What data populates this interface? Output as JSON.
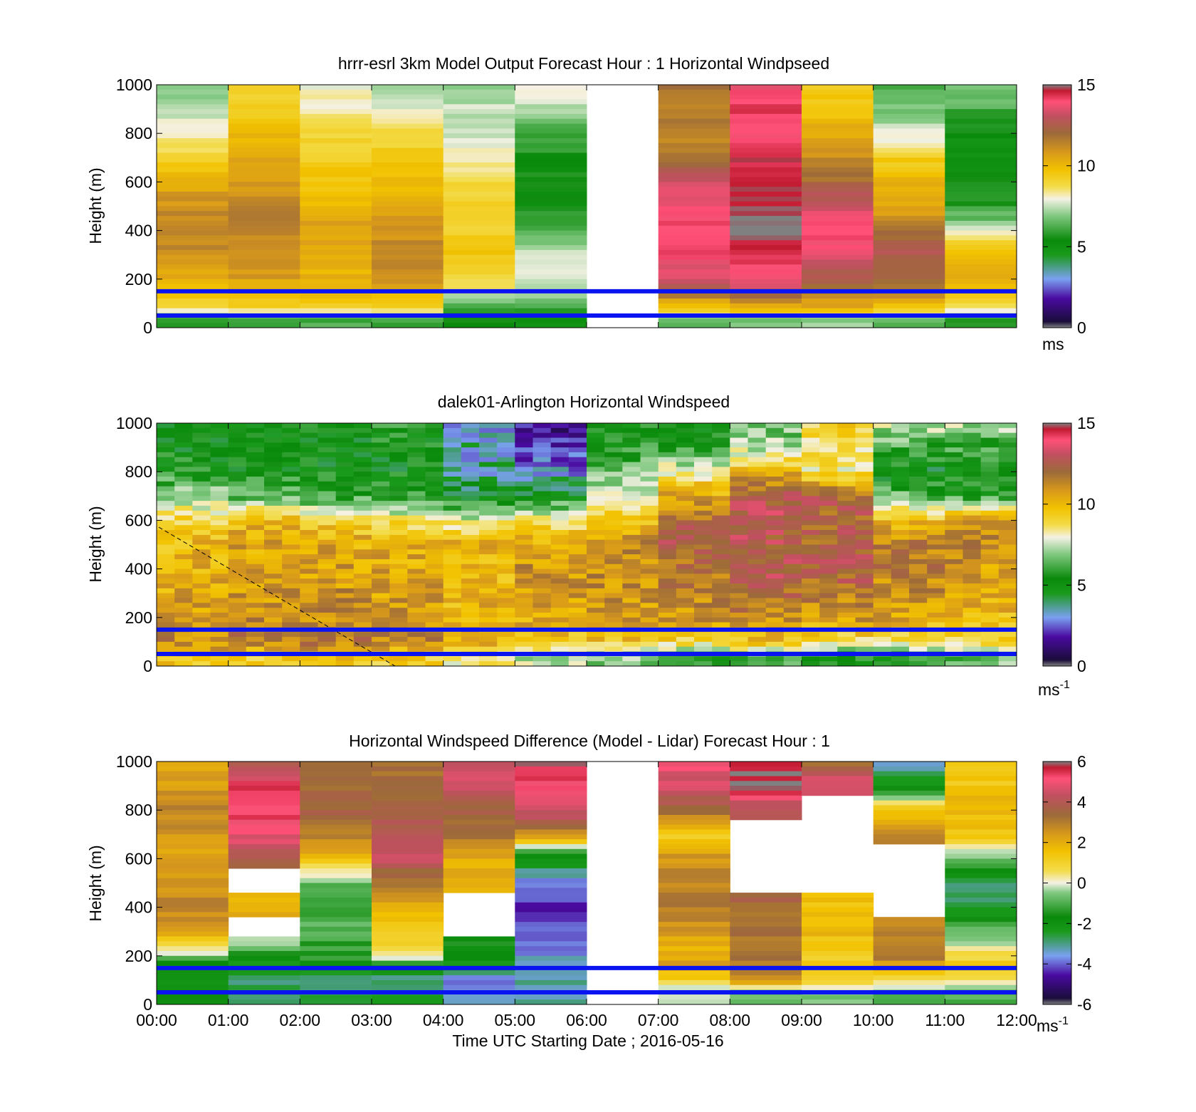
{
  "figure": {
    "x_ticks": [
      "00:00",
      "01:00",
      "02:00",
      "03:00",
      "04:00",
      "05:00",
      "06:00",
      "07:00",
      "08:00",
      "09:00",
      "10:00",
      "11:00",
      "12:00"
    ],
    "xlabel": "Time UTC  Starting Date ; 2016-05-16",
    "blue_line_heights": [
      150,
      50
    ],
    "blue_line_color": "#0a14f0"
  },
  "chart_data": [
    {
      "type": "heatmap",
      "title": "hrrr-esrl 3km Model Output   Forecast Hour : 1 Horizontal Windpseed",
      "ylabel": "Height (m)",
      "ylim": [
        0,
        1000
      ],
      "yticks": [
        0,
        200,
        400,
        600,
        800,
        1000
      ],
      "colorbar": {
        "min": 0,
        "max": 15,
        "ticks": [
          "0",
          "5",
          "10",
          "15"
        ],
        "unit": "ms",
        "unit_sup": ""
      },
      "colormap": "windspeed",
      "x_hours": [
        0,
        12
      ],
      "heights_m": [
        1000,
        900,
        800,
        700,
        600,
        500,
        450,
        400,
        350,
        300,
        250,
        200,
        150,
        100,
        60,
        30
      ],
      "columns_hours": [
        0,
        1,
        2,
        3,
        4,
        5,
        6,
        7,
        8,
        9,
        10,
        11
      ],
      "values_ms": [
        [
          6.5,
          8.8,
          7.6,
          7.0,
          6.7,
          7.9,
          null,
          11.5,
          13.5,
          9.3,
          5.8,
          6.6
        ],
        [
          7.1,
          9.3,
          8.0,
          7.6,
          7.2,
          6.8,
          null,
          11.4,
          14.4,
          9.5,
          6.4,
          5.8
        ],
        [
          7.8,
          9.7,
          8.7,
          8.6,
          7.2,
          5.8,
          null,
          11.1,
          14.0,
          10.3,
          7.4,
          4.8
        ],
        [
          9.0,
          10.2,
          9.2,
          9.3,
          7.8,
          5.1,
          null,
          11.6,
          14.5,
          11.0,
          9.1,
          4.5
        ],
        [
          10.2,
          10.6,
          9.5,
          9.6,
          8.6,
          5.0,
          null,
          13.2,
          15.0,
          11.8,
          10.1,
          5.0
        ],
        [
          10.8,
          11.0,
          10.0,
          10.0,
          9.2,
          5.0,
          null,
          13.9,
          15.0,
          13.0,
          10.4,
          5.5
        ],
        [
          11.0,
          11.2,
          10.3,
          10.4,
          9.0,
          5.4,
          null,
          14.1,
          15.0,
          13.6,
          10.9,
          6.2
        ],
        [
          11.1,
          11.2,
          10.5,
          10.7,
          9.1,
          5.9,
          null,
          14.2,
          15.0,
          14.0,
          11.5,
          7.6
        ],
        [
          11.0,
          11.1,
          10.4,
          10.9,
          9.3,
          6.6,
          null,
          14.0,
          14.7,
          13.9,
          12.0,
          9.1
        ],
        [
          10.8,
          10.9,
          10.3,
          11.0,
          9.4,
          7.2,
          null,
          13.9,
          14.5,
          13.5,
          12.6,
          9.9
        ],
        [
          10.5,
          10.7,
          10.2,
          11.0,
          9.2,
          7.4,
          null,
          13.6,
          14.0,
          12.7,
          12.2,
          10.3
        ],
        [
          10.1,
          10.5,
          10.0,
          10.7,
          8.9,
          7.5,
          null,
          13.0,
          13.7,
          12.5,
          11.8,
          10.2
        ],
        [
          9.5,
          9.9,
          9.7,
          10.0,
          7.9,
          7.0,
          null,
          11.8,
          12.7,
          11.6,
          11.0,
          9.8
        ],
        [
          9.0,
          9.4,
          9.3,
          9.3,
          6.2,
          5.8,
          null,
          10.2,
          10.8,
          10.5,
          10.2,
          9.1
        ],
        [
          7.3,
          7.6,
          7.8,
          7.7,
          5.3,
          5.2,
          null,
          8.6,
          9.0,
          9.2,
          8.3,
          7.5
        ],
        [
          5.4,
          5.6,
          5.8,
          5.7,
          5.0,
          4.8,
          null,
          6.1,
          6.4,
          6.6,
          6.0,
          5.4
        ]
      ]
    },
    {
      "type": "heatmap",
      "title": "dalek01-Arlington  Horizontal Windspeed",
      "ylabel": "Height (m)",
      "ylim": [
        0,
        1000
      ],
      "yticks": [
        0,
        200,
        400,
        600,
        800,
        1000
      ],
      "colorbar": {
        "min": 0,
        "max": 15,
        "ticks": [
          "0",
          "5",
          "10",
          "15"
        ],
        "unit": "ms",
        "unit_sup": "-1"
      },
      "colormap": "windspeed",
      "x_hours": [
        0,
        12
      ],
      "heights_m": [
        1000,
        900,
        800,
        700,
        600,
        500,
        400,
        300,
        200,
        100,
        40
      ],
      "columns_hours": [
        0,
        1,
        2,
        3,
        4,
        5,
        6,
        7,
        8,
        9,
        10,
        11
      ],
      "values_ms": [
        [
          5.0,
          4.9,
          4.8,
          5.2,
          3.0,
          1.2,
          5.0,
          5.0,
          6.0,
          9.0,
          7.5,
          7.0
        ],
        [
          4.8,
          4.7,
          4.7,
          4.9,
          3.3,
          1.8,
          5.3,
          5.3,
          7.0,
          8.5,
          5.6,
          5.5
        ],
        [
          5.2,
          5.0,
          4.8,
          4.8,
          3.6,
          2.8,
          6.3,
          7.8,
          9.8,
          8.2,
          4.5,
          4.8
        ],
        [
          6.6,
          6.0,
          5.5,
          5.2,
          4.6,
          4.8,
          7.3,
          10.3,
          12.5,
          12.1,
          6.0,
          5.2
        ],
        [
          8.9,
          9.8,
          9.0,
          8.4,
          7.6,
          8.0,
          9.6,
          11.9,
          12.6,
          12.0,
          9.6,
          10.6
        ],
        [
          9.8,
          10.4,
          10.2,
          10.0,
          10.2,
          10.4,
          10.9,
          12.2,
          12.5,
          12.1,
          11.3,
          11.0
        ],
        [
          9.9,
          10.2,
          10.5,
          10.3,
          9.5,
          10.8,
          11.0,
          11.6,
          12.6,
          12.4,
          11.2,
          10.6
        ],
        [
          10.2,
          10.6,
          10.8,
          10.5,
          9.8,
          10.6,
          10.8,
          11.1,
          11.9,
          11.4,
          10.9,
          10.2
        ],
        [
          10.8,
          11.0,
          11.0,
          10.9,
          10.1,
          10.3,
          10.5,
          10.8,
          11.0,
          10.7,
          10.4,
          9.8
        ],
        [
          11.1,
          11.3,
          11.5,
          11.2,
          10.2,
          9.4,
          9.5,
          8.8,
          9.5,
          8.6,
          8.4,
          8.6
        ],
        [
          9.4,
          9.2,
          9.6,
          9.1,
          8.2,
          7.1,
          6.4,
          5.2,
          6.0,
          5.3,
          5.1,
          6.2
        ]
      ]
    },
    {
      "type": "heatmap",
      "title": "Horizontal Windspeed Difference (Model - Lidar) Forecast Hour : 1",
      "xlabel": "Time UTC  Starting Date ; 2016-05-16",
      "ylabel": "Height (m)",
      "ylim": [
        0,
        1000
      ],
      "yticks": [
        0,
        200,
        400,
        600,
        800,
        1000
      ],
      "colorbar": {
        "min": -6,
        "max": 6,
        "ticks": [
          "-6",
          "-4",
          "-2",
          "0",
          "2",
          "4",
          "6"
        ],
        "unit": "ms",
        "unit_sup": "-1"
      },
      "colormap": "difference",
      "x_hours": [
        0,
        12
      ],
      "heights_m": [
        1000,
        900,
        800,
        700,
        600,
        500,
        400,
        300,
        250,
        200,
        150,
        100,
        50
      ],
      "columns_hours": [
        0,
        1,
        2,
        3,
        4,
        5,
        6,
        7,
        8,
        9,
        10,
        11
      ],
      "values_ms": [
        [
          2.0,
          4.0,
          3.0,
          3.2,
          4.2,
          6.0,
          null,
          5.0,
          6.0,
          3.4,
          -4.0,
          0.9
        ],
        [
          2.4,
          5.3,
          3.3,
          3.5,
          4.8,
          5.1,
          null,
          4.6,
          6.0,
          4.8,
          -2.2,
          1.4
        ],
        [
          2.8,
          5.4,
          3.6,
          3.8,
          3.6,
          4.6,
          null,
          3.5,
          3.8,
          null,
          1.5,
          1.7
        ],
        [
          2.5,
          5.0,
          3.0,
          4.0,
          3.2,
          2.6,
          null,
          1.0,
          null,
          null,
          2.8,
          1.3
        ],
        [
          2.2,
          3.8,
          1.6,
          4.4,
          2.0,
          -2.4,
          null,
          2.5,
          null,
          null,
          null,
          -1.0
        ],
        [
          2.5,
          null,
          -0.8,
          3.0,
          1.8,
          -3.9,
          null,
          2.8,
          null,
          null,
          null,
          -3.0
        ],
        [
          2.8,
          2.0,
          -1.2,
          2.0,
          null,
          -4.6,
          null,
          3.0,
          3.5,
          1.5,
          null,
          -3.0
        ],
        [
          2.2,
          null,
          -1.0,
          1.3,
          null,
          -4.4,
          null,
          2.4,
          3.2,
          1.7,
          2.8,
          -0.5
        ],
        [
          0.6,
          -0.6,
          -1.3,
          1.0,
          -1.8,
          -4.1,
          null,
          1.9,
          3.0,
          1.4,
          2.8,
          -0.2
        ],
        [
          -0.4,
          -1.9,
          -1.4,
          0.3,
          -1.9,
          -3.8,
          null,
          2.1,
          3.2,
          1.2,
          3.0,
          0.8
        ],
        [
          -2.4,
          -2.4,
          -2.0,
          -2.0,
          -2.6,
          -3.5,
          null,
          2.2,
          3.0,
          1.2,
          2.2,
          1.4
        ],
        [
          -2.3,
          -3.1,
          -3.0,
          -3.2,
          -4.0,
          -3.2,
          null,
          0.8,
          2.4,
          0.8,
          0.5,
          0.2
        ],
        [
          -2.0,
          -3.0,
          -3.0,
          -2.8,
          -3.6,
          -3.5,
          null,
          -0.3,
          -0.8,
          -0.6,
          -1.0,
          -1.2
        ]
      ]
    }
  ]
}
